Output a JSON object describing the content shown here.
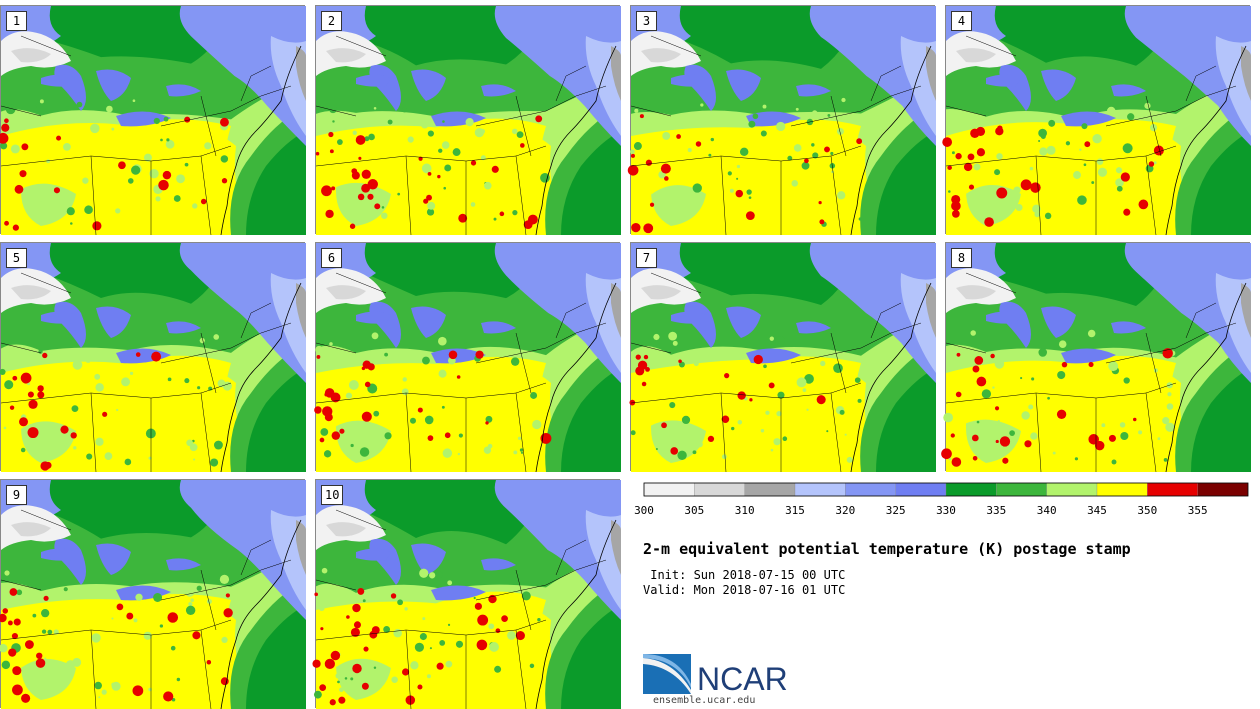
{
  "panels": [
    {
      "label": "1",
      "seed": 11,
      "red": 3
    },
    {
      "label": "2",
      "seed": 23,
      "red": 5
    },
    {
      "label": "3",
      "seed": 37,
      "red": 3
    },
    {
      "label": "4",
      "seed": 41,
      "red": 4
    },
    {
      "label": "5",
      "seed": 53,
      "red": 3
    },
    {
      "label": "6",
      "seed": 67,
      "red": 4
    },
    {
      "label": "7",
      "seed": 71,
      "red": 3
    },
    {
      "label": "8",
      "seed": 83,
      "red": 4
    },
    {
      "label": "9",
      "seed": 97,
      "red": 4
    },
    {
      "label": "10",
      "seed": 101,
      "red": 5
    }
  ],
  "colorbar": {
    "ticks": [
      "300",
      "305",
      "310",
      "315",
      "320",
      "325",
      "330",
      "335",
      "340",
      "345",
      "350",
      "355"
    ],
    "colors": [
      "#f2f2f2",
      "#d8d8d8",
      "#a6a6a6",
      "#b4c4fb",
      "#8496f4",
      "#6f7ef2",
      "#0b9b2a",
      "#3db63c",
      "#b2f36c",
      "#ffff00",
      "#e60000",
      "#7a0000"
    ]
  },
  "palette": {
    "snow": "#f2f2f2",
    "lightgray": "#d8d8d8",
    "gray": "#a6a6a6",
    "lightblue": "#b4c4fb",
    "blue": "#8496f4",
    "darkblue": "#6f7ef2",
    "darkgreen": "#0b9b2a",
    "green": "#3db63c",
    "lightgreen": "#b2f36c",
    "yellow": "#ffff00",
    "red": "#e60000",
    "lake": "#6f7ef2"
  },
  "text": {
    "title": "2-m equivalent potential temperature (K) postage stamp",
    "init": " Init: Sun 2018-07-15 00 UTC",
    "valid": "Valid: Mon 2018-07-16 01 UTC",
    "logo_name": "NCAR",
    "logo_url": "ensemble.ucar.edu"
  }
}
